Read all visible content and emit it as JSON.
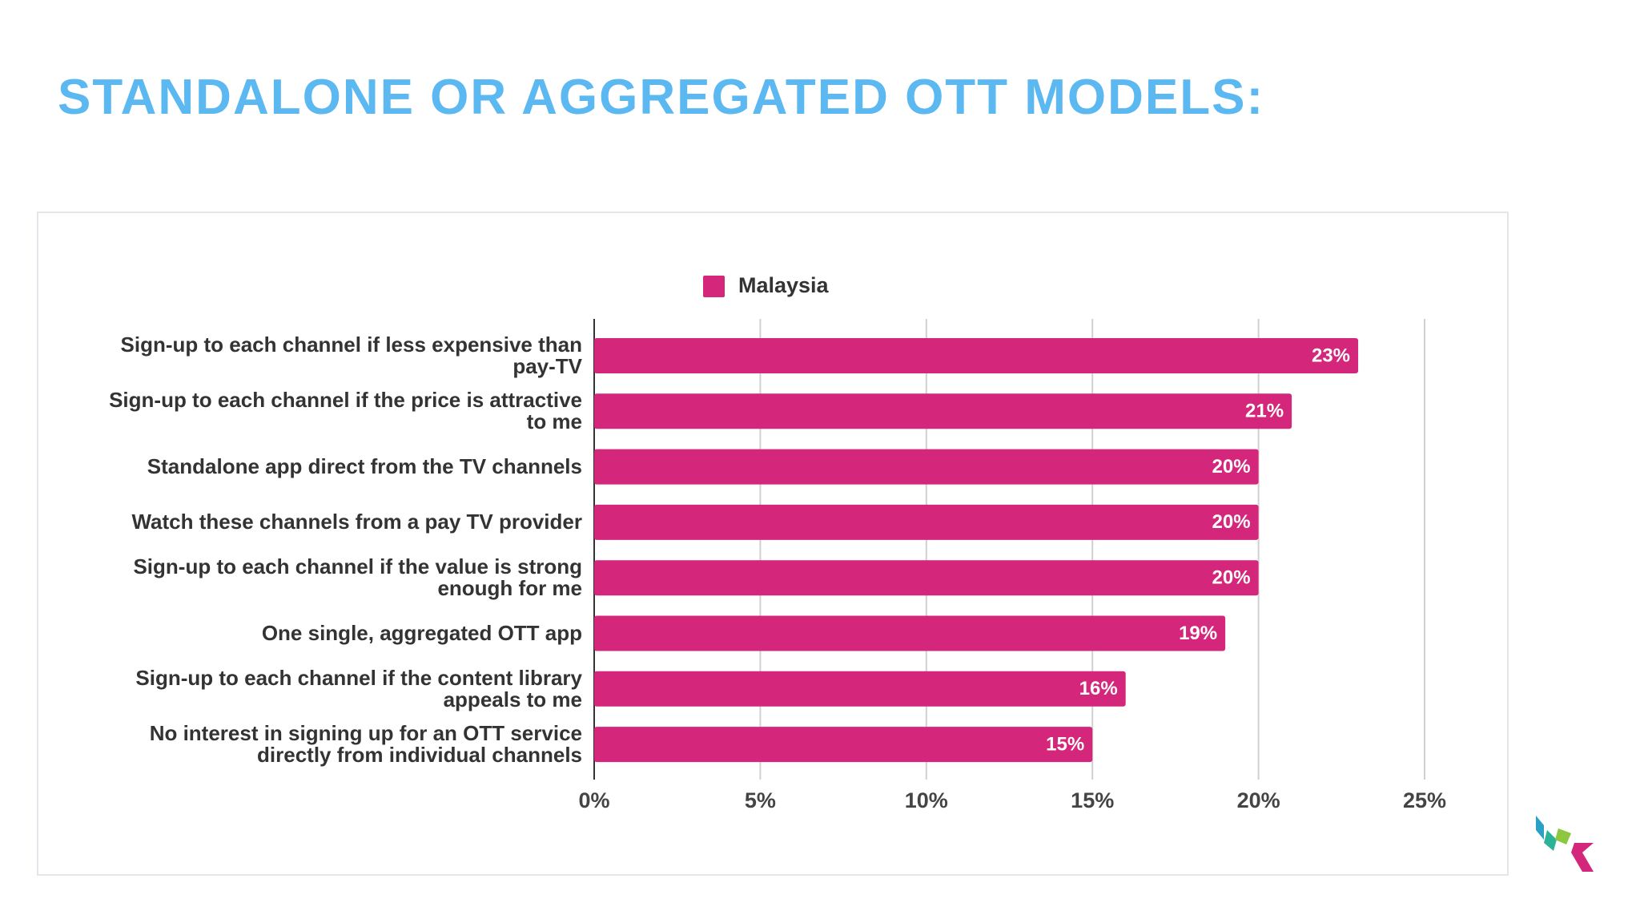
{
  "title": "STANDALONE OR AGGREGATED OTT MODELS:",
  "chart_data": {
    "type": "bar",
    "orientation": "horizontal",
    "categories": [
      "Sign-up to each channel if less expensive than pay-TV",
      "Sign-up to each channel if the price is attractive to me",
      "Standalone app direct from the TV channels",
      "Watch these channels from a pay TV provider",
      "Sign-up to each channel if the value is strong enough for me",
      "One single, aggregated OTT app",
      "Sign-up to each channel if the content library appeals to me",
      "No interest in signing up for an OTT service directly from individual channels"
    ],
    "series": [
      {
        "name": "Malaysia",
        "color": "#d4267a",
        "values": [
          23,
          21,
          20,
          20,
          20,
          19,
          16,
          15
        ],
        "value_labels": [
          "23%",
          "21%",
          "20%",
          "20%",
          "20%",
          "19%",
          "16%",
          "15%"
        ]
      }
    ],
    "xlim": [
      0,
      25
    ],
    "xticks": [
      {
        "value": 0,
        "label": "0%"
      },
      {
        "value": 5,
        "label": "5%"
      },
      {
        "value": 10,
        "label": "10%"
      },
      {
        "value": 15,
        "label": "15%"
      },
      {
        "value": 20,
        "label": "20%"
      },
      {
        "value": 25,
        "label": "25%"
      }
    ],
    "grid": true,
    "legend": "top"
  }
}
